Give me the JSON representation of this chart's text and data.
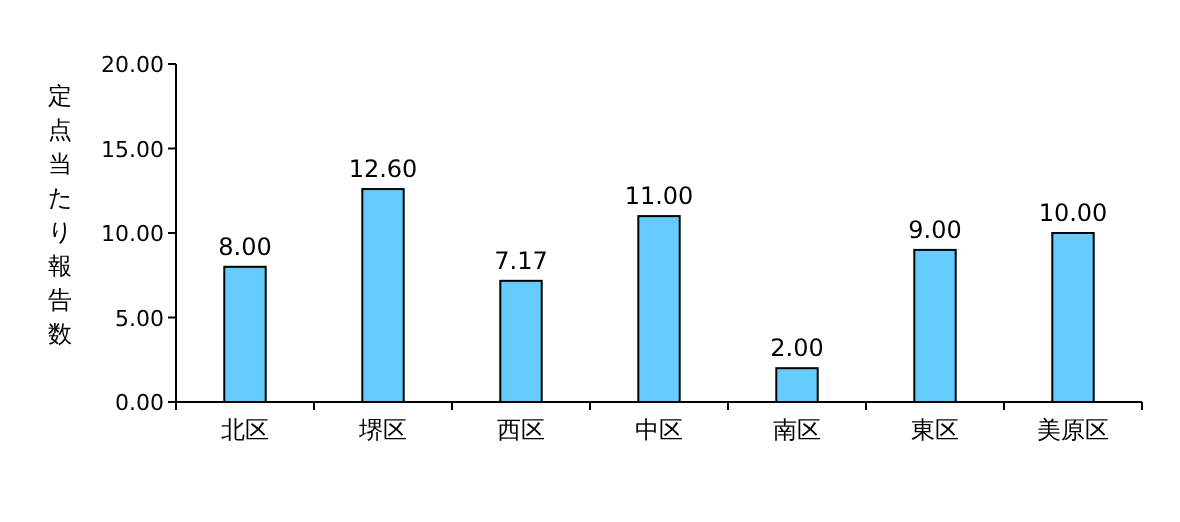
{
  "chart_data": {
    "type": "bar",
    "ylabel": "定点当たり報告数",
    "categories": [
      "北区",
      "堺区",
      "西区",
      "中区",
      "南区",
      "東区",
      "美原区"
    ],
    "values": [
      8.0,
      12.6,
      7.17,
      11.0,
      2.0,
      9.0,
      10.0
    ],
    "value_labels": [
      "8.00",
      "12.60",
      "7.17",
      "11.00",
      "2.00",
      "9.00",
      "10.00"
    ],
    "color": "#66ccff",
    "ylim": [
      0,
      20
    ],
    "yticks": [
      {
        "value": 0,
        "label": "0.00"
      },
      {
        "value": 5,
        "label": "5.00"
      },
      {
        "value": 10,
        "label": "10.00"
      },
      {
        "value": 15,
        "label": "15.00"
      },
      {
        "value": 20,
        "label": "20.00"
      }
    ]
  }
}
